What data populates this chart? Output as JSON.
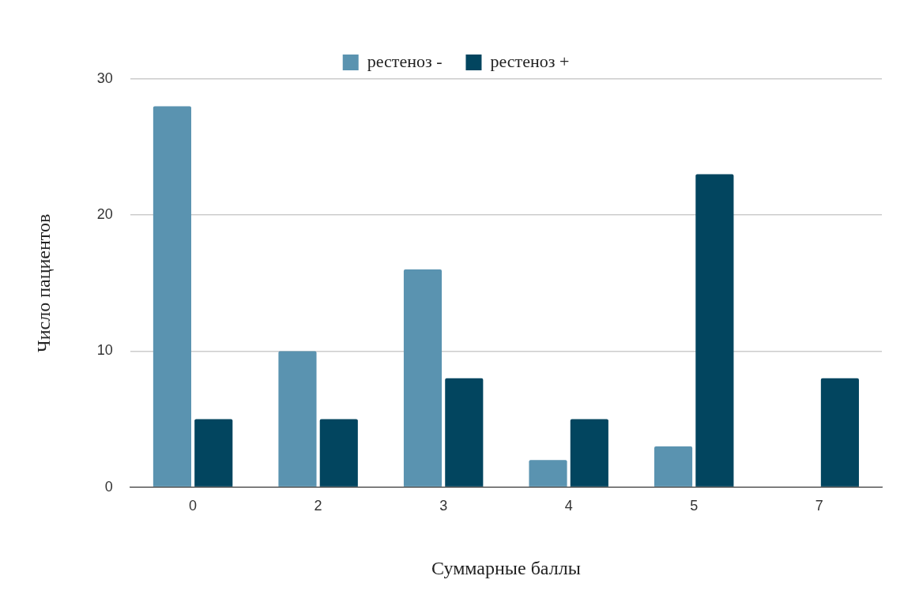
{
  "chart_data": {
    "type": "bar",
    "xlabel": "Суммарные баллы",
    "ylabel": "Число пациентов",
    "categories": [
      "0",
      "2",
      "3",
      "4",
      "5",
      "7"
    ],
    "series": [
      {
        "name": "рестеноз -",
        "color": "#5a93b0",
        "values": [
          28,
          10,
          16,
          2,
          3,
          0
        ]
      },
      {
        "name": "рестеноз +",
        "color": "#02455f",
        "values": [
          5,
          5,
          8,
          5,
          23,
          8
        ]
      }
    ],
    "ylim": [
      0,
      30
    ],
    "yticks": [
      0,
      10,
      20,
      30
    ],
    "grid": "y",
    "legend": "top"
  }
}
